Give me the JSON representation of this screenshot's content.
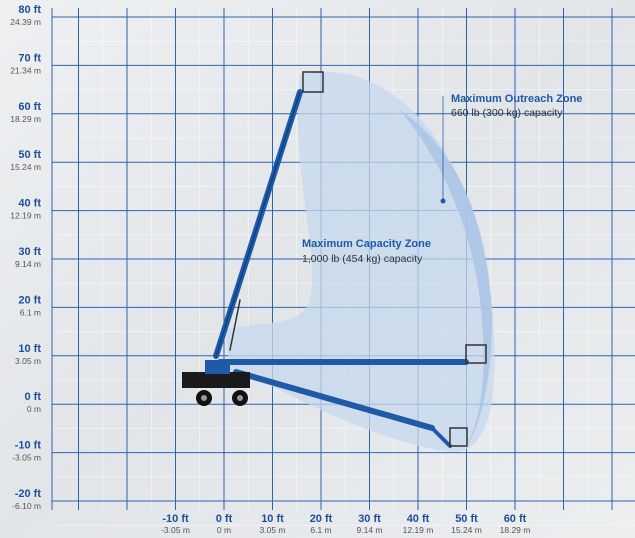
{
  "y_axis": {
    "ticks": [
      {
        "ft": "80 ft",
        "m": "24.39 m"
      },
      {
        "ft": "70 ft",
        "m": "21.34 m"
      },
      {
        "ft": "60 ft",
        "m": "18.29 m"
      },
      {
        "ft": "50 ft",
        "m": "15.24 m"
      },
      {
        "ft": "40 ft",
        "m": "12.19 m"
      },
      {
        "ft": "30 ft",
        "m": "9.14 m"
      },
      {
        "ft": "20 ft",
        "m": "6.1 m"
      },
      {
        "ft": "10 ft",
        "m": "3.05 m"
      },
      {
        "ft": "0 ft",
        "m": "0 m"
      },
      {
        "ft": "-10 ft",
        "m": "-3.05 m"
      },
      {
        "ft": "-20 ft",
        "m": "-6.10 m"
      }
    ]
  },
  "x_axis": {
    "ticks": [
      {
        "ft": "-10 ft",
        "m": "-3.05 m"
      },
      {
        "ft": "0 ft",
        "m": "0 m"
      },
      {
        "ft": "10 ft",
        "m": "3.05 m"
      },
      {
        "ft": "20 ft",
        "m": "6.1 m"
      },
      {
        "ft": "30 ft",
        "m": "9.14 m"
      },
      {
        "ft": "40 ft",
        "m": "12.19 m"
      },
      {
        "ft": "50 ft",
        "m": "15.24 m"
      },
      {
        "ft": "60 ft",
        "m": "18.29 m"
      }
    ]
  },
  "zones": [
    {
      "title": "Maximum Outreach Zone",
      "capacity": "660 lb (300 kg) capacity"
    },
    {
      "title": "Maximum Capacity Zone",
      "capacity": "1,000 lb (454 kg) capacity"
    }
  ]
}
